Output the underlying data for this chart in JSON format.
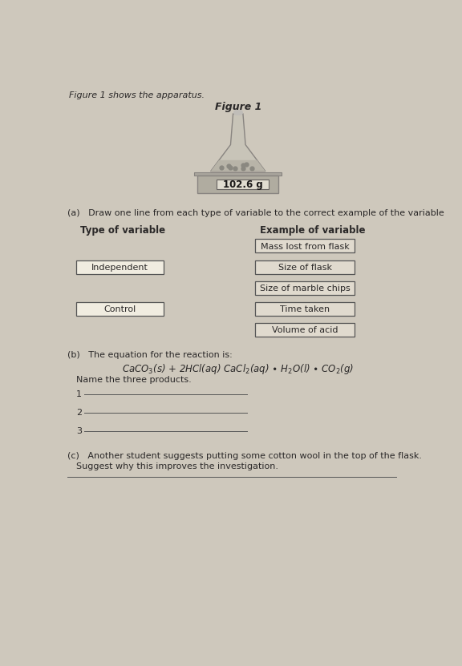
{
  "bg_color": "#cec8bc",
  "page_color": "#e8e2d4",
  "text_color": "#2a2828",
  "top_text": "Figure 1 shows the apparatus.",
  "figure1_label": "Figure 1",
  "scale_reading": "102.6 g",
  "part_a_instruction": "(a)   Draw one line from each type of variable to the correct example of the variable",
  "type_header": "Type of variable",
  "example_header": "Example of variable",
  "left_boxes": [
    "Independent",
    "Control"
  ],
  "right_boxes": [
    "Mass lost from flask",
    "Size of flask",
    "Size of marble chips",
    "Time taken",
    "Volume of acid"
  ],
  "part_b_intro": "(b)   The equation for the reaction is:",
  "equation_normal": "CaCO",
  "equation_sub1": "3",
  "part_c_intro": "(c)   Another student suggests putting some cotton wool in the top of the flask.",
  "part_c_question": "Suggest why this improves the investigation.",
  "box_facecolor": "#e0dace",
  "box_edgecolor": "#555555",
  "left_box_facecolor": "#f0ece0",
  "left_box_edgecolor": "#555555",
  "flask_color": "#c8c4b8",
  "flask_edge": "#888480",
  "scale_color": "#b0aca0",
  "scale_edge": "#888480",
  "display_color": "#e0dcd0",
  "display_edge": "#666260"
}
